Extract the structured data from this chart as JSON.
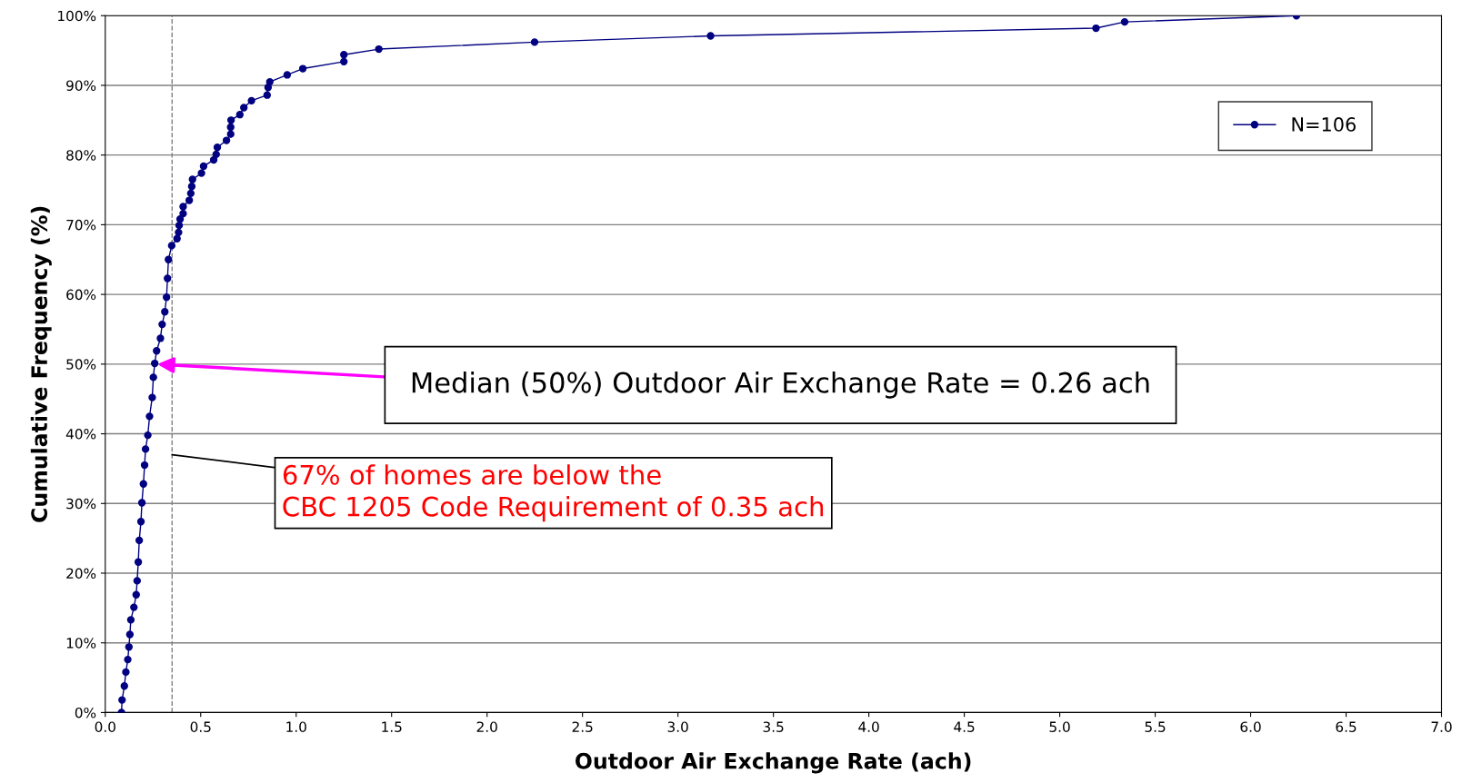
{
  "chart_data": {
    "type": "line",
    "xlabel": "Outdoor Air Exchange Rate (ach)",
    "ylabel": "Cumulative Frequency (%)",
    "x": [
      0.085,
      0.088,
      0.1,
      0.108,
      0.118,
      0.124,
      0.129,
      0.134,
      0.15,
      0.162,
      0.167,
      0.173,
      0.178,
      0.187,
      0.192,
      0.2,
      0.206,
      0.211,
      0.223,
      0.232,
      0.246,
      0.252,
      0.259,
      0.269,
      0.289,
      0.298,
      0.312,
      0.321,
      0.326,
      0.331,
      0.348,
      0.376,
      0.384,
      0.387,
      0.392,
      0.408,
      0.408,
      0.44,
      0.448,
      0.453,
      0.457,
      0.504,
      0.515,
      0.568,
      0.581,
      0.587,
      0.635,
      0.657,
      0.657,
      0.659,
      0.705,
      0.726,
      0.766,
      0.848,
      0.853,
      0.862,
      0.953,
      1.035,
      1.25,
      1.25,
      1.433,
      2.249,
      3.171,
      5.19,
      5.34,
      6.24
    ],
    "series": [
      {
        "name": "N=106",
        "color": "#000080",
        "values": [
          0,
          1.8,
          3.8,
          5.8,
          7.6,
          9.4,
          11.2,
          13.3,
          15.1,
          16.9,
          18.9,
          21.6,
          24.7,
          27.4,
          30.1,
          32.8,
          35.5,
          37.8,
          39.8,
          42.5,
          45.2,
          48.1,
          50.1,
          51.9,
          53.7,
          55.7,
          57.5,
          59.6,
          62.3,
          65.0,
          67.0,
          68.0,
          68.9,
          69.9,
          70.8,
          71.6,
          72.6,
          73.5,
          74.5,
          75.5,
          76.5,
          77.4,
          78.4,
          79.3,
          80.1,
          81.1,
          82.1,
          83.0,
          84.0,
          85.0,
          85.8,
          86.8,
          87.8,
          88.6,
          89.7,
          90.5,
          91.5,
          92.4,
          93.4,
          94.4,
          95.2,
          96.2,
          97.1,
          98.2,
          99.1,
          100
        ]
      }
    ],
    "xlim": [
      0,
      7
    ],
    "xticks": [
      {
        "value": 0,
        "label": "0.0"
      },
      {
        "value": 0.5,
        "label": "0.5"
      },
      {
        "value": 1,
        "label": "1.0"
      },
      {
        "value": 1.5,
        "label": "1.5"
      },
      {
        "value": 2,
        "label": "2.0"
      },
      {
        "value": 2.5,
        "label": "2.5"
      },
      {
        "value": 3,
        "label": "3.0"
      },
      {
        "value": 3.5,
        "label": "3.5"
      },
      {
        "value": 4,
        "label": "4.0"
      },
      {
        "value": 4.5,
        "label": "4.5"
      },
      {
        "value": 5,
        "label": "5.0"
      },
      {
        "value": 5.5,
        "label": "5.5"
      },
      {
        "value": 6,
        "label": "6.0"
      },
      {
        "value": 6.5,
        "label": "6.5"
      },
      {
        "value": 7,
        "label": "7.0"
      }
    ],
    "ylim": [
      0,
      100
    ],
    "yticks": [
      {
        "value": 0,
        "label": "0%"
      },
      {
        "value": 10,
        "label": "10%"
      },
      {
        "value": 20,
        "label": "20%"
      },
      {
        "value": 30,
        "label": "30%"
      },
      {
        "value": 40,
        "label": "40%"
      },
      {
        "value": 50,
        "label": "50%"
      },
      {
        "value": 60,
        "label": "60%"
      },
      {
        "value": 70,
        "label": "70%"
      },
      {
        "value": 80,
        "label": "80%"
      },
      {
        "value": 90,
        "label": "90%"
      },
      {
        "value": 100,
        "label": "100%"
      }
    ],
    "ref_lines": [
      {
        "axis": "x",
        "value": 0.35,
        "color": "#808080",
        "line_style": "dashed"
      }
    ],
    "annotations": [
      {
        "text": "Median (50%) Outdoor Air Exchange Rate = 0.26 ach",
        "x": 0.26,
        "y": 50
      },
      {
        "text": "67% of homes are below the\nCBC 1205 Code Requirement of 0.35 ach",
        "x": 0.35,
        "y": 37
      }
    ],
    "grid": "y",
    "legend": "top right",
    "marker": "circle",
    "line_style": "solid"
  }
}
